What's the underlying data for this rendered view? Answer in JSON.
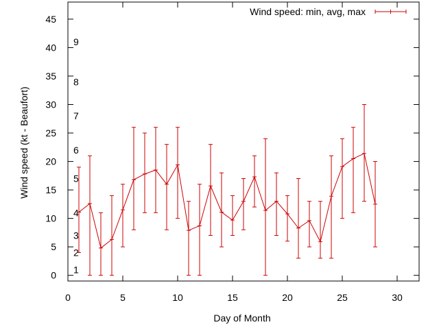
{
  "chart_data": {
    "type": "errorbar-line",
    "title": "",
    "xlabel": "Day of Month",
    "ylabel": "Wind speed (kt - Beaufort)",
    "xlim": [
      0,
      32
    ],
    "ylim": [
      -1,
      48
    ],
    "x_ticks": [
      0,
      5,
      10,
      15,
      20,
      25,
      30
    ],
    "y_ticks": [
      0,
      5,
      10,
      15,
      20,
      25,
      30,
      35,
      40,
      45
    ],
    "grid": false,
    "legend": {
      "position": "top-right",
      "label": "Wind speed: min, avg, max"
    },
    "beaufort_labels": [
      {
        "label": "1",
        "value": 1
      },
      {
        "label": "2",
        "value": 4
      },
      {
        "label": "3",
        "value": 7
      },
      {
        "label": "4",
        "value": 11
      },
      {
        "label": "5",
        "value": 17
      },
      {
        "label": "6",
        "value": 22
      },
      {
        "label": "7",
        "value": 28
      },
      {
        "label": "8",
        "value": 34
      },
      {
        "label": "9",
        "value": 41
      }
    ],
    "series": [
      {
        "name": "Wind speed: min, avg, max",
        "color": "#cc0000",
        "points": [
          {
            "x": 1,
            "avg": 11.1,
            "min": 4,
            "max": 19
          },
          {
            "x": 2,
            "avg": 12.6,
            "min": 0,
            "max": 21
          },
          {
            "x": 3,
            "avg": 4.8,
            "min": 0,
            "max": 11
          },
          {
            "x": 4,
            "avg": 6.3,
            "min": 0,
            "max": 14
          },
          {
            "x": 5,
            "avg": 11.5,
            "min": 5,
            "max": 16
          },
          {
            "x": 6,
            "avg": 16.8,
            "min": 8,
            "max": 26
          },
          {
            "x": 7,
            "avg": 17.8,
            "min": 11,
            "max": 25
          },
          {
            "x": 8,
            "avg": 18.5,
            "min": 11,
            "max": 26
          },
          {
            "x": 9,
            "avg": 16.0,
            "min": 8,
            "max": 23
          },
          {
            "x": 10,
            "avg": 19.4,
            "min": 10,
            "max": 26
          },
          {
            "x": 11,
            "avg": 7.9,
            "min": 0,
            "max": 13
          },
          {
            "x": 12,
            "avg": 8.7,
            "min": 0,
            "max": 16
          },
          {
            "x": 13,
            "avg": 15.7,
            "min": 7,
            "max": 23
          },
          {
            "x": 14,
            "avg": 11.1,
            "min": 5,
            "max": 18
          },
          {
            "x": 15,
            "avg": 9.7,
            "min": 7,
            "max": 14
          },
          {
            "x": 16,
            "avg": 13.0,
            "min": 8,
            "max": 17
          },
          {
            "x": 17,
            "avg": 17.3,
            "min": 12,
            "max": 21
          },
          {
            "x": 18,
            "avg": 11.4,
            "min": 0,
            "max": 24
          },
          {
            "x": 19,
            "avg": 13.0,
            "min": 7,
            "max": 18
          },
          {
            "x": 20,
            "avg": 10.8,
            "min": 6,
            "max": 14
          },
          {
            "x": 21,
            "avg": 8.3,
            "min": 3,
            "max": 17
          },
          {
            "x": 22,
            "avg": 9.6,
            "min": 5,
            "max": 13
          },
          {
            "x": 23,
            "avg": 5.9,
            "min": 3,
            "max": 13
          },
          {
            "x": 24,
            "avg": 13.9,
            "min": 3,
            "max": 21
          },
          {
            "x": 25,
            "avg": 19.1,
            "min": 10,
            "max": 24
          },
          {
            "x": 26,
            "avg": 20.5,
            "min": 11,
            "max": 26
          },
          {
            "x": 27,
            "avg": 21.4,
            "min": 13,
            "max": 30
          },
          {
            "x": 28,
            "avg": 12.5,
            "min": 5,
            "max": 20
          }
        ]
      }
    ]
  }
}
